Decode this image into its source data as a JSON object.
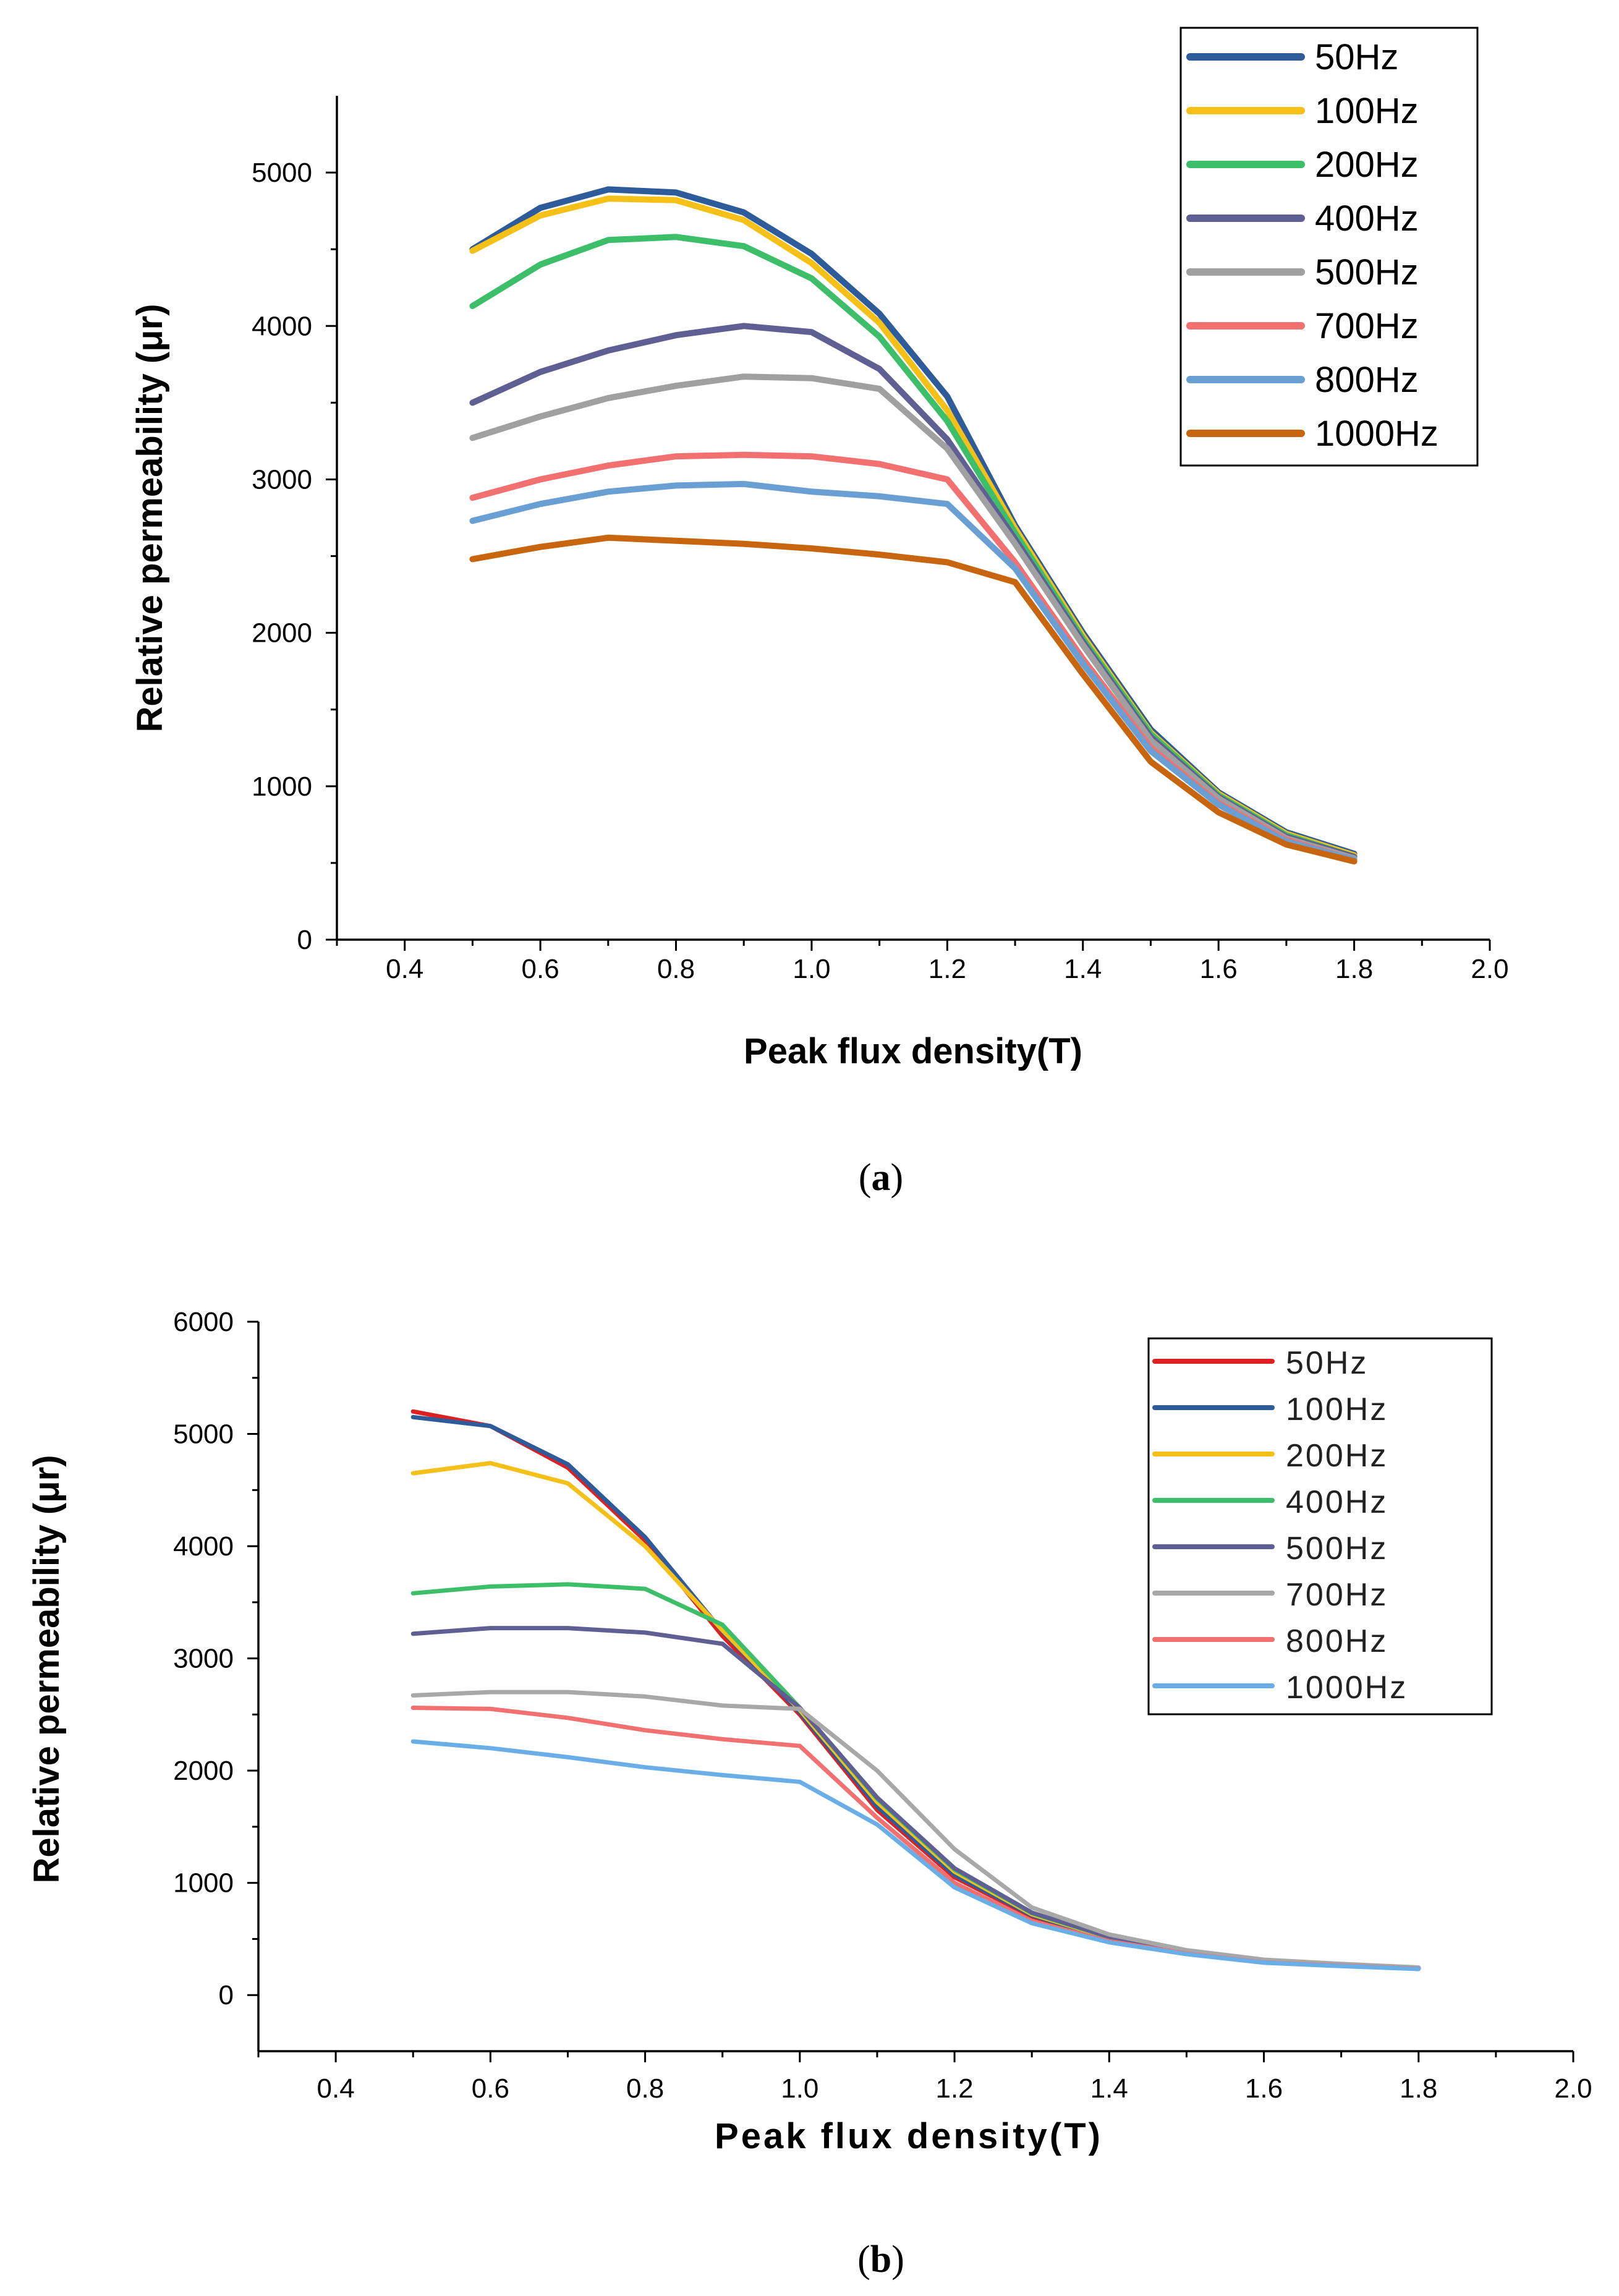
{
  "figure": {
    "caption_a": "a",
    "caption_b": "b"
  },
  "chart_data": [
    {
      "type": "line",
      "panel": "a",
      "xlabel": "Peak flux density(T)",
      "ylabel": "Relative permeability (μr)",
      "xlim": [
        0.3,
        2.0
      ],
      "ylim": [
        0,
        5500
      ],
      "xticks": [
        "0.4",
        "0.6",
        "0.8",
        "1.0",
        "1.2",
        "1.4",
        "1.6",
        "1.8",
        "2.0"
      ],
      "yticks": [
        "0",
        "1000",
        "2000",
        "3000",
        "4000",
        "5000"
      ],
      "legend_position": "top-right",
      "x": [
        0.5,
        0.6,
        0.7,
        0.8,
        0.9,
        1.0,
        1.1,
        1.2,
        1.3,
        1.4,
        1.5,
        1.6,
        1.7,
        1.8
      ],
      "series": [
        {
          "name": "50Hz",
          "color": "#2e5b9a",
          "values": [
            4500,
            4770,
            4890,
            4870,
            4740,
            4470,
            4080,
            3540,
            2700,
            2000,
            1370,
            960,
            700,
            560
          ]
        },
        {
          "name": "100Hz",
          "color": "#f5c118",
          "values": [
            4490,
            4720,
            4830,
            4820,
            4690,
            4410,
            4020,
            3450,
            2680,
            1980,
            1350,
            950,
            690,
            550
          ]
        },
        {
          "name": "200Hz",
          "color": "#3dbf6a",
          "values": [
            4130,
            4400,
            4560,
            4580,
            4520,
            4310,
            3930,
            3380,
            2650,
            1960,
            1340,
            940,
            680,
            540
          ]
        },
        {
          "name": "400Hz",
          "color": "#5f5f94",
          "values": [
            3500,
            3700,
            3840,
            3940,
            4000,
            3960,
            3720,
            3260,
            2610,
            1940,
            1320,
            930,
            670,
            540
          ]
        },
        {
          "name": "500Hz",
          "color": "#a0a0a0",
          "values": [
            3270,
            3410,
            3530,
            3610,
            3670,
            3660,
            3590,
            3200,
            2580,
            1920,
            1300,
            920,
            660,
            530
          ]
        },
        {
          "name": "700Hz",
          "color": "#f27070",
          "values": [
            2880,
            3000,
            3090,
            3150,
            3160,
            3150,
            3100,
            3000,
            2460,
            1830,
            1250,
            890,
            650,
            520
          ]
        },
        {
          "name": "800Hz",
          "color": "#6a9fd4",
          "values": [
            2730,
            2840,
            2920,
            2960,
            2970,
            2920,
            2890,
            2840,
            2420,
            1800,
            1230,
            880,
            640,
            520
          ]
        },
        {
          "name": "1000Hz",
          "color": "#c8650f",
          "values": [
            2480,
            2560,
            2620,
            2600,
            2580,
            2550,
            2510,
            2460,
            2330,
            1730,
            1160,
            830,
            620,
            510
          ]
        }
      ]
    },
    {
      "type": "line",
      "panel": "b",
      "xlabel": "Peak flux density(T)",
      "ylabel": "Relative permeability (μr)",
      "xlim": [
        0.3,
        2.0
      ],
      "ylim": [
        -500,
        6000
      ],
      "xticks": [
        "0.4",
        "0.6",
        "0.8",
        "1.0",
        "1.2",
        "1.4",
        "1.6",
        "1.8",
        "2.0"
      ],
      "yticks": [
        "0",
        "1000",
        "2000",
        "3000",
        "4000",
        "5000",
        "6000"
      ],
      "legend_position": "top-right",
      "x": [
        0.5,
        0.6,
        0.7,
        0.8,
        0.9,
        1.0,
        1.1,
        1.2,
        1.3,
        1.4,
        1.5,
        1.6,
        1.7,
        1.8
      ],
      "series": [
        {
          "name": "50Hz",
          "color": "#e02020",
          "values": [
            5200,
            5070,
            4700,
            4050,
            3200,
            2500,
            1650,
            1050,
            700,
            500,
            380,
            300,
            270,
            240
          ]
        },
        {
          "name": "100Hz",
          "color": "#2e5b9a",
          "values": [
            5150,
            5070,
            4730,
            4080,
            3240,
            2520,
            1680,
            1070,
            710,
            505,
            385,
            305,
            270,
            240
          ]
        },
        {
          "name": "200Hz",
          "color": "#f5c118",
          "values": [
            4650,
            4740,
            4560,
            4000,
            3250,
            2540,
            1720,
            1100,
            720,
            510,
            390,
            305,
            272,
            242
          ]
        },
        {
          "name": "400Hz",
          "color": "#3dbf6a",
          "values": [
            3580,
            3640,
            3660,
            3620,
            3300,
            2560,
            1750,
            1120,
            730,
            515,
            392,
            308,
            274,
            243
          ]
        },
        {
          "name": "500Hz",
          "color": "#5f5f94",
          "values": [
            3220,
            3270,
            3270,
            3230,
            3130,
            2560,
            1760,
            1130,
            735,
            518,
            394,
            309,
            275,
            244
          ]
        },
        {
          "name": "700Hz",
          "color": "#a8a8a8",
          "values": [
            2670,
            2700,
            2700,
            2660,
            2580,
            2550,
            2000,
            1300,
            780,
            540,
            400,
            315,
            278,
            246
          ]
        },
        {
          "name": "800Hz",
          "color": "#f27070",
          "values": [
            2560,
            2550,
            2470,
            2360,
            2280,
            2220,
            1580,
            1000,
            660,
            480,
            370,
            290,
            262,
            235
          ]
        },
        {
          "name": "1000Hz",
          "color": "#6aaee8",
          "values": [
            2260,
            2200,
            2120,
            2030,
            1960,
            1900,
            1520,
            960,
            640,
            470,
            365,
            288,
            258,
            232
          ]
        }
      ]
    }
  ]
}
